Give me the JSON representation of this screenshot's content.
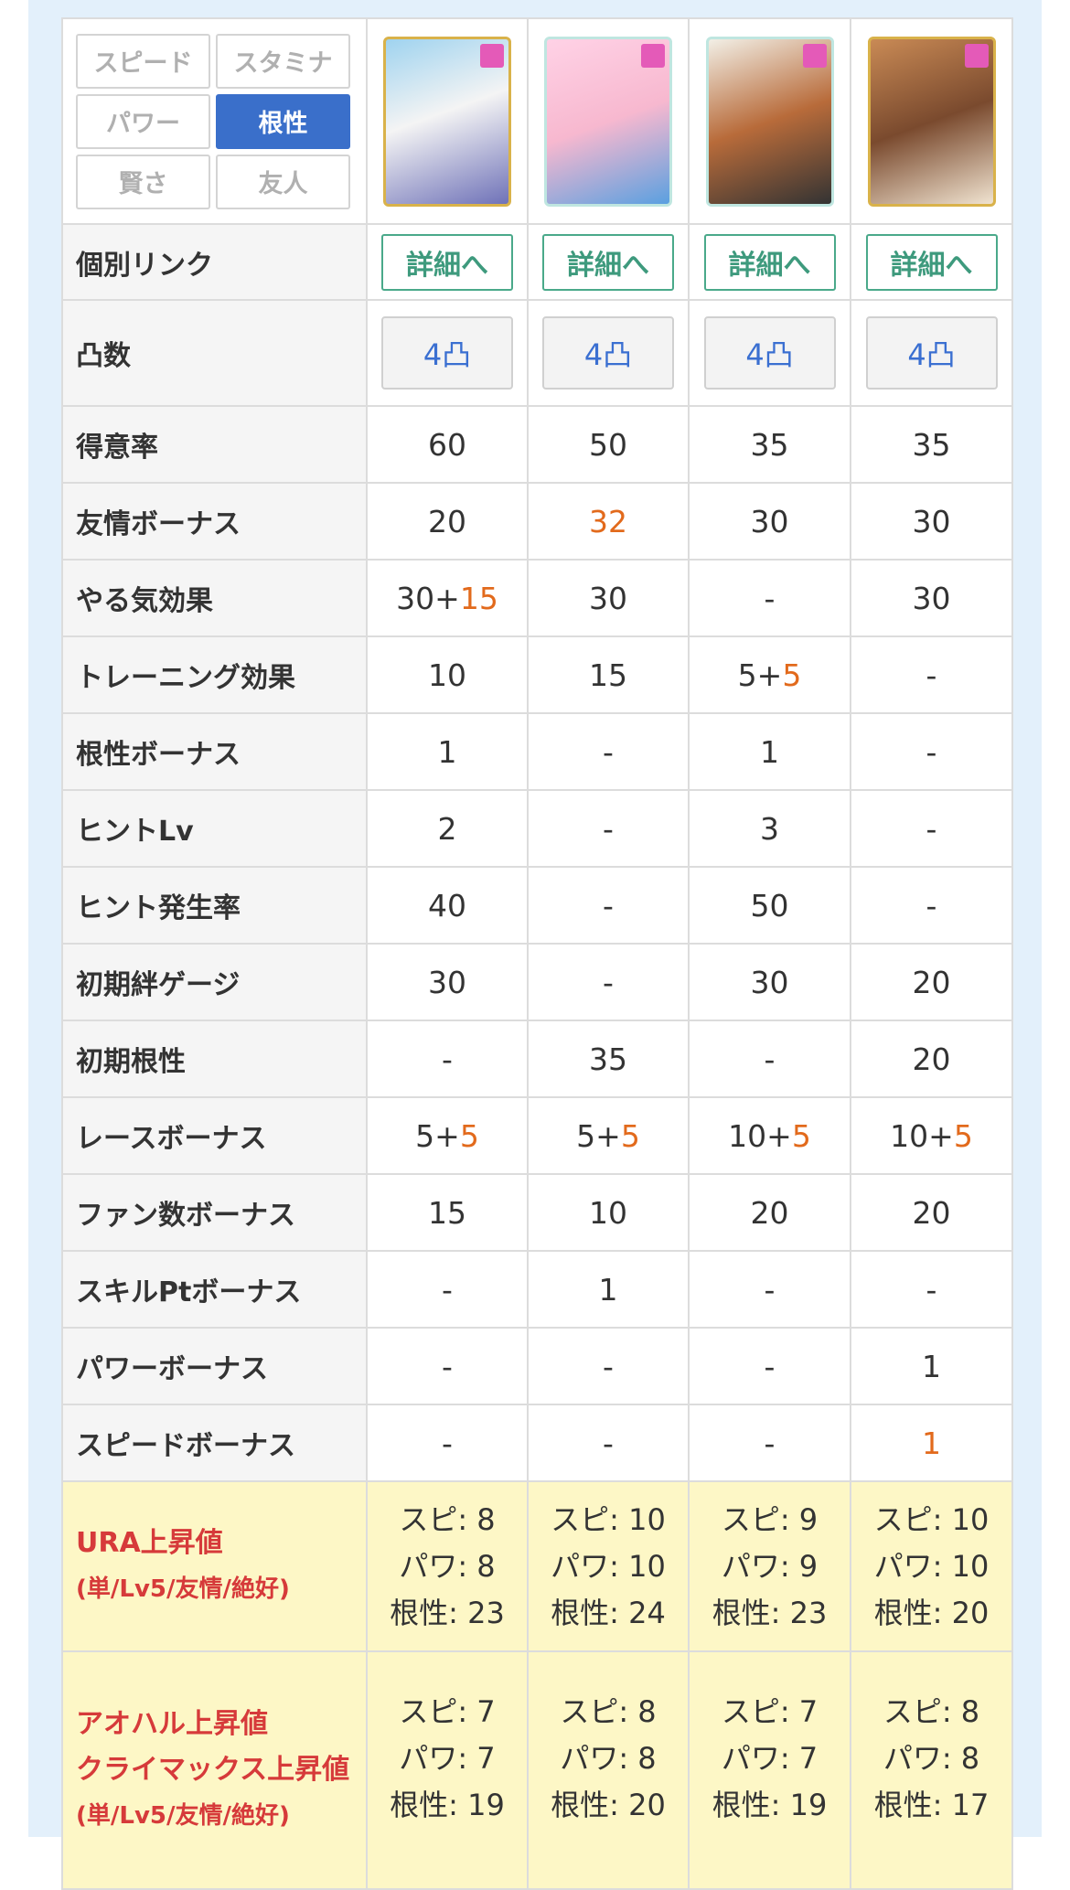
{
  "filters": [
    {
      "label": "スピード",
      "selected": false
    },
    {
      "label": "スタミナ",
      "selected": false
    },
    {
      "label": "パワー",
      "selected": false
    },
    {
      "label": "根性",
      "selected": true
    },
    {
      "label": "賢さ",
      "selected": false
    },
    {
      "label": "友人",
      "selected": false
    }
  ],
  "link_label": "個別リンク",
  "links": [
    "詳細へ",
    "詳細へ",
    "詳細へ",
    "詳細へ"
  ],
  "limit_label": "凸数",
  "limits": [
    "4凸",
    "4凸",
    "4凸",
    "4凸"
  ],
  "rows": [
    {
      "label": "得意率",
      "cells": [
        "60",
        "50",
        "35",
        "35"
      ]
    },
    {
      "label": "友情ボーナス",
      "cells": [
        "20",
        {
          "accent": "32"
        },
        "30",
        "30"
      ]
    },
    {
      "label": "やる気効果",
      "cells": [
        {
          "main": "30+",
          "accent": "15"
        },
        "30",
        "-",
        "30"
      ]
    },
    {
      "label": "トレーニング効果",
      "cells": [
        "10",
        "15",
        {
          "main": "5+",
          "accent": "5"
        },
        "-"
      ]
    },
    {
      "label": "根性ボーナス",
      "cells": [
        "1",
        "-",
        "1",
        "-"
      ]
    },
    {
      "label": "ヒントLv",
      "cells": [
        "2",
        "-",
        "3",
        "-"
      ]
    },
    {
      "label": "ヒント発生率",
      "cells": [
        "40",
        "-",
        "50",
        "-"
      ]
    },
    {
      "label": "初期絆ゲージ",
      "cells": [
        "30",
        "-",
        "30",
        "20"
      ]
    },
    {
      "label": "初期根性",
      "cells": [
        "-",
        "35",
        "-",
        "20"
      ]
    },
    {
      "label": "レースボーナス",
      "cells": [
        {
          "main": "5+",
          "accent": "5"
        },
        {
          "main": "5+",
          "accent": "5"
        },
        {
          "main": "10+",
          "accent": "5"
        },
        {
          "main": "10+",
          "accent": "5"
        }
      ]
    },
    {
      "label": "ファン数ボーナス",
      "cells": [
        "15",
        "10",
        "20",
        "20"
      ]
    },
    {
      "label": "スキルPtボーナス",
      "cells": [
        "-",
        "1",
        "-",
        "-"
      ]
    },
    {
      "label": "パワーボーナス",
      "cells": [
        "-",
        "-",
        "-",
        "1"
      ]
    },
    {
      "label": "スピードボーナス",
      "cells": [
        "-",
        "-",
        "-",
        {
          "accent": "1"
        }
      ]
    }
  ],
  "stat_rows": [
    {
      "labels": [
        "URA上昇値",
        "(単/Lv5/友情/絶好)"
      ],
      "cells": [
        [
          "スピ: 8",
          "パワ: 8",
          "根性: 23"
        ],
        [
          "スピ: 10",
          "パワ: 10",
          "根性: 24"
        ],
        [
          "スピ: 9",
          "パワ: 9",
          "根性: 23"
        ],
        [
          "スピ: 10",
          "パワ: 10",
          "根性: 20"
        ]
      ]
    },
    {
      "labels": [
        "アオハル上昇値",
        "クライマックス上昇値",
        "(単/Lv5/友情/絶好)"
      ],
      "cells": [
        [
          "スピ: 7",
          "パワ: 7",
          "根性: 19"
        ],
        [
          "スピ: 8",
          "パワ: 8",
          "根性: 20"
        ],
        [
          "スピ: 7",
          "パワ: 7",
          "根性: 19"
        ],
        [
          "スピ: 8",
          "パワ: 8",
          "根性: 17"
        ]
      ]
    }
  ]
}
